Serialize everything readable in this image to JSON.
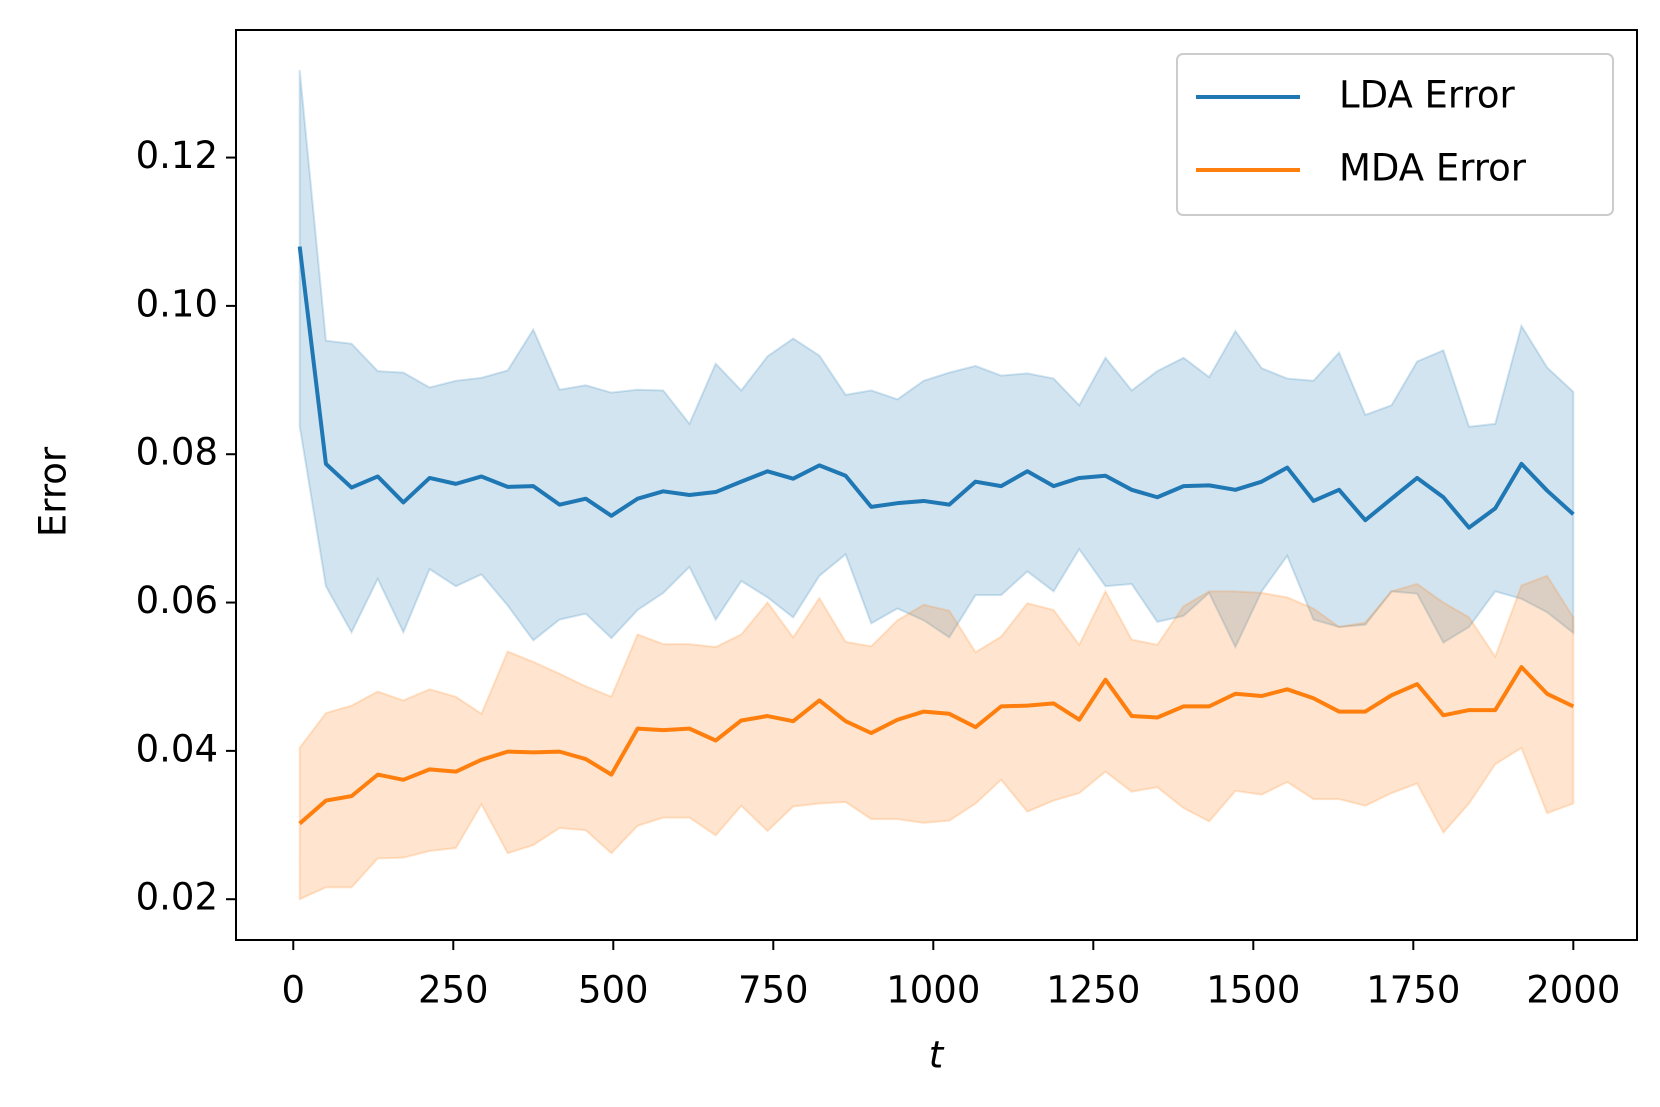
{
  "chart_data": {
    "type": "line",
    "xlabel": "t",
    "ylabel": "Error",
    "x": [
      10,
      51,
      91,
      132,
      172,
      213,
      254,
      294,
      335,
      375,
      416,
      457,
      497,
      538,
      578,
      619,
      660,
      700,
      741,
      781,
      822,
      863,
      903,
      944,
      985,
      1025,
      1066,
      1106,
      1147,
      1188,
      1228,
      1269,
      1310,
      1350,
      1391,
      1431,
      1472,
      1513,
      1553,
      1594,
      1634,
      1675,
      1716,
      1756,
      1797,
      1837,
      1878,
      1919,
      1959,
      2000
    ],
    "series": [
      {
        "name": "LDA Error",
        "color": "#1f77b4",
        "values": [
          0.108,
          0.0787,
          0.0755,
          0.077,
          0.0735,
          0.0768,
          0.076,
          0.077,
          0.0756,
          0.0757,
          0.0732,
          0.074,
          0.0717,
          0.074,
          0.075,
          0.0745,
          0.0749,
          0.0763,
          0.0777,
          0.0767,
          0.0785,
          0.0771,
          0.0729,
          0.0734,
          0.0737,
          0.0732,
          0.0763,
          0.0757,
          0.0777,
          0.0757,
          0.0768,
          0.0771,
          0.0752,
          0.0742,
          0.0757,
          0.0758,
          0.0752,
          0.0763,
          0.0782,
          0.0737,
          0.0752,
          0.0711,
          0.074,
          0.0768,
          0.0742,
          0.0701,
          0.0727,
          0.0787,
          0.0751,
          0.0719
        ],
        "upper": [
          0.1318,
          0.0953,
          0.0949,
          0.0912,
          0.091,
          0.089,
          0.0899,
          0.0903,
          0.0913,
          0.0968,
          0.0887,
          0.0893,
          0.0883,
          0.0887,
          0.0886,
          0.0841,
          0.0922,
          0.0886,
          0.0932,
          0.0956,
          0.0933,
          0.088,
          0.0886,
          0.0874,
          0.0899,
          0.091,
          0.0919,
          0.0906,
          0.0909,
          0.0902,
          0.0866,
          0.093,
          0.0886,
          0.0912,
          0.093,
          0.0904,
          0.0966,
          0.0916,
          0.0902,
          0.0899,
          0.0937,
          0.0853,
          0.0866,
          0.0925,
          0.094,
          0.0837,
          0.0841,
          0.0973,
          0.0917,
          0.0884
        ],
        "lower": [
          0.0838,
          0.0622,
          0.056,
          0.0632,
          0.056,
          0.0645,
          0.0622,
          0.0638,
          0.0596,
          0.0549,
          0.0577,
          0.0585,
          0.0552,
          0.059,
          0.0613,
          0.0648,
          0.0577,
          0.0629,
          0.0607,
          0.058,
          0.0636,
          0.0665,
          0.0572,
          0.0592,
          0.0576,
          0.0553,
          0.061,
          0.061,
          0.0642,
          0.0615,
          0.0672,
          0.0622,
          0.0625,
          0.0574,
          0.0582,
          0.0613,
          0.054,
          0.0615,
          0.0663,
          0.0577,
          0.0567,
          0.057,
          0.0615,
          0.0612,
          0.0546,
          0.0567,
          0.0615,
          0.0605,
          0.0587,
          0.0559
        ]
      },
      {
        "name": "MDA Error",
        "color": "#ff7f0e",
        "values": [
          0.0302,
          0.0333,
          0.0339,
          0.0368,
          0.0361,
          0.0375,
          0.0372,
          0.0388,
          0.0399,
          0.0398,
          0.0399,
          0.0389,
          0.0368,
          0.043,
          0.0428,
          0.043,
          0.0414,
          0.0441,
          0.0447,
          0.044,
          0.0468,
          0.044,
          0.0424,
          0.0442,
          0.0453,
          0.045,
          0.0432,
          0.046,
          0.0461,
          0.0464,
          0.0442,
          0.0496,
          0.0447,
          0.0445,
          0.046,
          0.046,
          0.0477,
          0.0474,
          0.0483,
          0.0471,
          0.0453,
          0.0453,
          0.0475,
          0.049,
          0.0448,
          0.0455,
          0.0455,
          0.0513,
          0.0477,
          0.046
        ],
        "upper": [
          0.0404,
          0.0451,
          0.0461,
          0.048,
          0.0468,
          0.0483,
          0.0473,
          0.045,
          0.0534,
          0.052,
          0.0504,
          0.0487,
          0.0473,
          0.0557,
          0.0544,
          0.0544,
          0.054,
          0.0557,
          0.06,
          0.0553,
          0.0606,
          0.0547,
          0.0541,
          0.0576,
          0.0597,
          0.0589,
          0.0533,
          0.0554,
          0.0599,
          0.059,
          0.0543,
          0.0615,
          0.055,
          0.0543,
          0.0595,
          0.0615,
          0.0615,
          0.0613,
          0.0607,
          0.0592,
          0.0567,
          0.0573,
          0.0615,
          0.0625,
          0.06,
          0.058,
          0.0527,
          0.0623,
          0.0636,
          0.058
        ],
        "lower": [
          0.02,
          0.0216,
          0.0216,
          0.0255,
          0.0256,
          0.0265,
          0.0269,
          0.0328,
          0.0262,
          0.0273,
          0.0296,
          0.0293,
          0.0262,
          0.0299,
          0.031,
          0.031,
          0.0286,
          0.0326,
          0.0292,
          0.0325,
          0.0329,
          0.0331,
          0.0308,
          0.0308,
          0.0303,
          0.0306,
          0.0329,
          0.0361,
          0.0318,
          0.0333,
          0.0343,
          0.0372,
          0.0345,
          0.0351,
          0.0323,
          0.0305,
          0.0346,
          0.0341,
          0.0358,
          0.0335,
          0.0335,
          0.0326,
          0.0343,
          0.0356,
          0.029,
          0.0329,
          0.0382,
          0.0404,
          0.0316,
          0.0329
        ]
      }
    ],
    "xlim": [
      -89.5,
      2099.5
    ],
    "ylim": [
      0.0145,
      0.1372
    ],
    "xticks": [
      0,
      250,
      500,
      750,
      1000,
      1250,
      1500,
      1750,
      2000
    ],
    "yticks": [
      0.02,
      0.04,
      0.06,
      0.08,
      {
        "value": 0.1,
        "label": "0.10"
      },
      0.12
    ],
    "legend": "upper right",
    "band_opacity": 0.2
  }
}
